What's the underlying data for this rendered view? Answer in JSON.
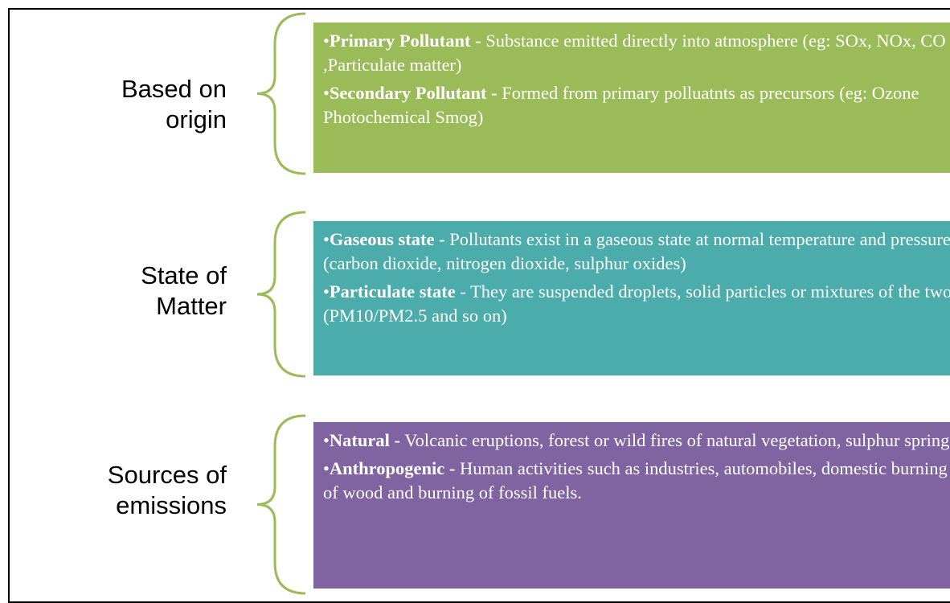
{
  "rows": [
    {
      "label": "Based on origin",
      "items": [
        {
          "term": "Primary Pollutant -",
          "text": "Substance emitted directly into atmosphere (eg: SOx, NOx, CO ,Particulate matter)"
        },
        {
          "term": "Secondary Pollutant -",
          "text": "Formed from primary polluatnts as precursors (eg: Ozone Photochemical Smog)"
        }
      ]
    },
    {
      "label": "State of Matter",
      "items": [
        {
          "term": "Gaseous state -",
          "text": "Pollutants exist in a gaseous state at normal temperature and pressure (carbon dioxide, nitrogen dioxide, sulphur oxides)"
        },
        {
          "term": "Particulate state",
          "text": "- They are suspended droplets, solid particles or mixtures of the two (PM10/PM2.5 and so on)"
        }
      ]
    },
    {
      "label": "Sources of emissions",
      "items": [
        {
          "term": "Natural -",
          "text": "Volcanic eruptions, forest or wild fires of natural vegetation, sulphur springs"
        },
        {
          "term": "Anthropogenic -",
          "text": "Human activities such as industries, automobiles, domestic burning of wood and burning of fossil fuels."
        }
      ]
    }
  ]
}
